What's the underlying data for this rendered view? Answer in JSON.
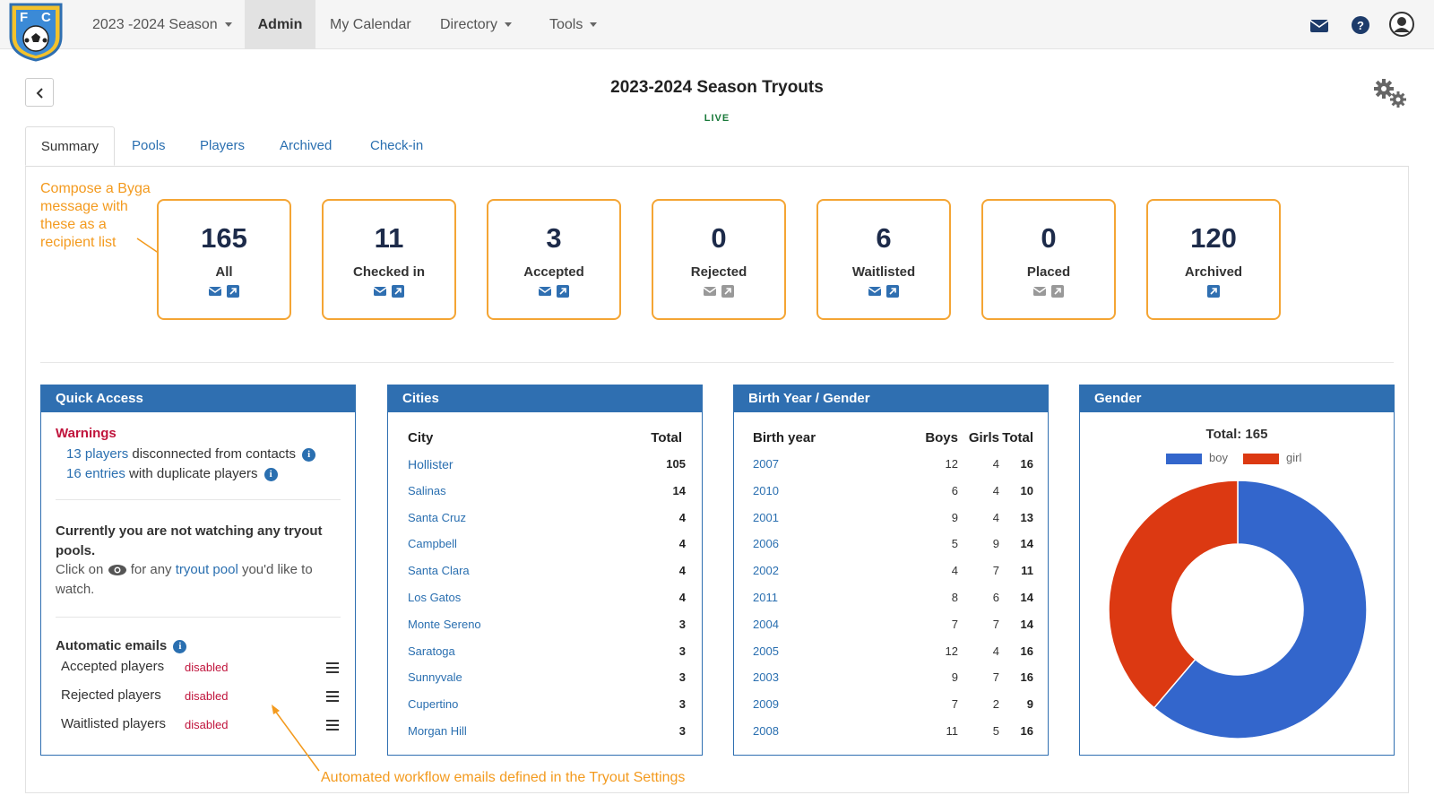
{
  "nav": {
    "logo_letters": "FC",
    "season": "2023 -2024 Season",
    "admin": "Admin",
    "calendar": "My Calendar",
    "directory": "Directory",
    "tools": "Tools"
  },
  "page": {
    "title": "2023-2024 Season Tryouts",
    "status": "LIVE"
  },
  "tabs": [
    "Summary",
    "Pools",
    "Players",
    "Archived",
    "Check-in"
  ],
  "annotations": {
    "compose": "Compose a Byga message with these as a recipient list",
    "automated": "Automated workflow emails defined in the Tryout Settings"
  },
  "cards": [
    {
      "value": "165",
      "label": "All",
      "mail": true,
      "link": true
    },
    {
      "value": "11",
      "label": "Checked in",
      "mail": true,
      "link": true
    },
    {
      "value": "3",
      "label": "Accepted",
      "mail": true,
      "link": true
    },
    {
      "value": "0",
      "label": "Rejected",
      "mail": false,
      "link": false
    },
    {
      "value": "6",
      "label": "Waitlisted",
      "mail": true,
      "link": true
    },
    {
      "value": "0",
      "label": "Placed",
      "mail": false,
      "link": false
    },
    {
      "value": "120",
      "label": "Archived",
      "mail": null,
      "link": true
    }
  ],
  "quick_access": {
    "title": "Quick Access",
    "warnings_label": "Warnings",
    "warning1_link": "13 players",
    "warning1_text": " disconnected from contacts",
    "warning2_link": "16 entries",
    "warning2_text": " with duplicate players",
    "watching_title": "Currently you are not watching any tryout pools.",
    "watching_pre": "Click on",
    "watching_mid": " for any ",
    "watching_link": "tryout pool",
    "watching_post": " you'd like to watch.",
    "auto_title": "Automatic emails",
    "auto_emails": [
      {
        "name": "Accepted players",
        "status": "disabled"
      },
      {
        "name": "Rejected players",
        "status": "disabled"
      },
      {
        "name": "Waitlisted players",
        "status": "disabled"
      }
    ]
  },
  "cities": {
    "title": "Cities",
    "col_city": "City",
    "col_total": "Total",
    "rows": [
      {
        "city": "Hollister",
        "total": "105"
      },
      {
        "city": "Salinas",
        "total": "14"
      },
      {
        "city": "Santa Cruz",
        "total": "4"
      },
      {
        "city": "Campbell",
        "total": "4"
      },
      {
        "city": "Santa Clara",
        "total": "4"
      },
      {
        "city": "Los Gatos",
        "total": "4"
      },
      {
        "city": "Monte Sereno",
        "total": "3"
      },
      {
        "city": "Saratoga",
        "total": "3"
      },
      {
        "city": "Sunnyvale",
        "total": "3"
      },
      {
        "city": "Cupertino",
        "total": "3"
      },
      {
        "city": "Morgan Hill",
        "total": "3"
      }
    ]
  },
  "birth_year": {
    "title": "Birth Year / Gender",
    "col_year": "Birth year",
    "col_boys": "Boys",
    "col_girls": "Girls",
    "col_total": "Total",
    "rows": [
      {
        "year": "2007",
        "boys": "12",
        "girls": "4",
        "total": "16"
      },
      {
        "year": "2010",
        "boys": "6",
        "girls": "4",
        "total": "10"
      },
      {
        "year": "2001",
        "boys": "9",
        "girls": "4",
        "total": "13"
      },
      {
        "year": "2006",
        "boys": "5",
        "girls": "9",
        "total": "14"
      },
      {
        "year": "2002",
        "boys": "4",
        "girls": "7",
        "total": "11"
      },
      {
        "year": "2011",
        "boys": "8",
        "girls": "6",
        "total": "14"
      },
      {
        "year": "2004",
        "boys": "7",
        "girls": "7",
        "total": "14"
      },
      {
        "year": "2005",
        "boys": "12",
        "girls": "4",
        "total": "16"
      },
      {
        "year": "2003",
        "boys": "9",
        "girls": "7",
        "total": "16"
      },
      {
        "year": "2009",
        "boys": "7",
        "girls": "2",
        "total": "9"
      },
      {
        "year": "2008",
        "boys": "11",
        "girls": "5",
        "total": "16"
      }
    ]
  },
  "gender": {
    "title": "Gender",
    "total_label": "Total: 165"
  },
  "chart_data": {
    "type": "pie",
    "title": "Total: 165",
    "categories": [
      "boy",
      "girl"
    ],
    "values": [
      101,
      64
    ],
    "colors": [
      "#3366cc",
      "#dc3912"
    ],
    "legend": "top",
    "donut": true
  }
}
